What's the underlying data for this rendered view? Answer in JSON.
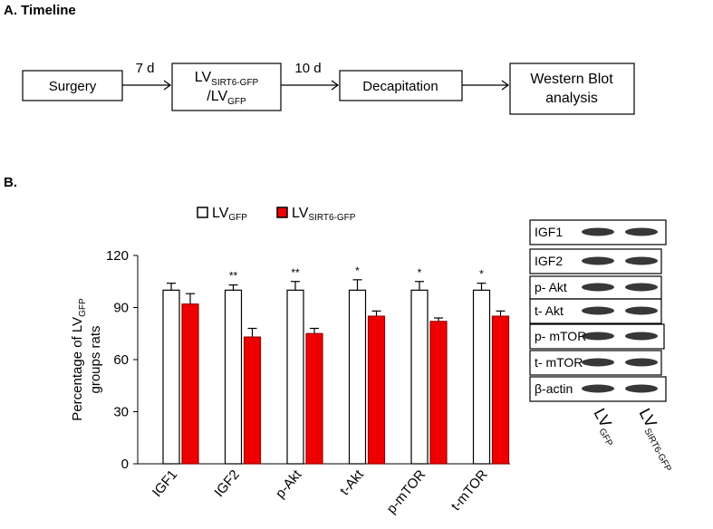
{
  "panel_a": {
    "label": "A. Timeline",
    "nodes": [
      {
        "label": "Surgery"
      },
      {
        "lines": [
          [
            {
              "text": "LV"
            },
            {
              "sub": "SIRT6-GFP"
            }
          ],
          [
            {
              "text": "/LV"
            },
            {
              "sub": "GFP"
            }
          ]
        ]
      },
      {
        "label": "Decapitation"
      },
      {
        "lines": [
          [
            {
              "text": "Western Blot"
            }
          ],
          [
            {
              "text": "analysis"
            }
          ]
        ]
      }
    ],
    "arrows": [
      "7 d",
      "10 d",
      null
    ]
  },
  "panel_b": {
    "label": "B.",
    "blot": {
      "rows": [
        "IGF1",
        "IGF2",
        "p- Akt",
        "t- Akt",
        "p- mTOR",
        "t- mTOR",
        "β-actin"
      ],
      "lanes": [
        {
          "text": "LV",
          "sub": "GFP"
        },
        {
          "text": "LV",
          "sub": "SIRT6-GFP"
        }
      ]
    }
  },
  "chart_data": {
    "type": "bar",
    "ylabel": {
      "text": "Percentage of LV",
      "sub": "GFP",
      "line2": "groups rats"
    },
    "categories": [
      "IGF1",
      "IGF2",
      "p-Akt",
      "t-Akt",
      "p-mTOR",
      "t-mTOR"
    ],
    "series": [
      {
        "name": "LV",
        "name_sub": "GFP",
        "color": "#ffffff",
        "values": [
          100,
          100,
          100,
          100,
          100,
          100
        ],
        "errors": [
          4,
          3,
          5,
          6,
          5,
          4
        ]
      },
      {
        "name": "LV",
        "name_sub": "SIRT6-GFP",
        "color": "#ee0000",
        "values": [
          92,
          73,
          75,
          85,
          82,
          85
        ],
        "errors": [
          6,
          5,
          3,
          3,
          2,
          3
        ]
      }
    ],
    "significance": [
      null,
      "**",
      "**",
      "*",
      "*",
      "*"
    ],
    "ylim": [
      0,
      120
    ],
    "yticks": [
      0,
      30,
      60,
      90,
      120
    ]
  }
}
